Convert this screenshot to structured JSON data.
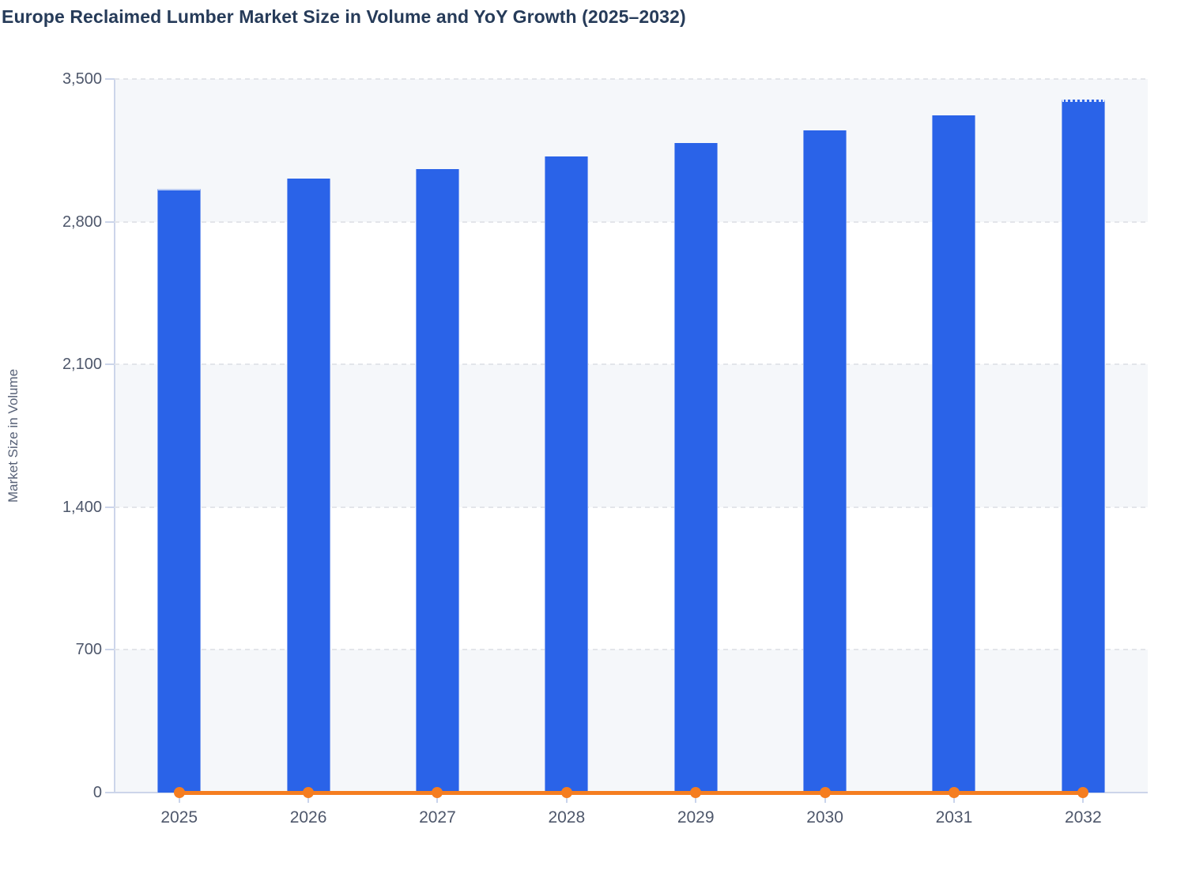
{
  "title": "Europe Reclaimed Lumber Market Size in Volume and YoY Growth (2025–2032)",
  "y_axis": {
    "title": "Market Size in Volume",
    "min": 0,
    "max": 3500,
    "tick_interval": 700,
    "tick_labels_top_to_bottom": [
      "3,500",
      "2,800",
      "2,100",
      "1,400",
      "700",
      "0"
    ]
  },
  "x_axis": {
    "categories": [
      "2025",
      "2026",
      "2027",
      "2028",
      "2029",
      "2030",
      "2031",
      "2032"
    ]
  },
  "chart_data": {
    "type": "bar",
    "title": "Europe Reclaimed Lumber Market Size in Volume and YoY Growth (2025–2032)",
    "categories": [
      "2025",
      "2026",
      "2027",
      "2028",
      "2029",
      "2030",
      "2031",
      "2032"
    ],
    "series": [
      {
        "name": "Market Size in Volume",
        "type": "bar",
        "color": "#2a63e8",
        "values": [
          2960,
          3010,
          3060,
          3120,
          3185,
          3250,
          3320,
          3400
        ],
        "last_bar_style": "dotted white top edge (forecast marker)"
      },
      {
        "name": "YoY Growth",
        "type": "line",
        "color": "#f57d20",
        "values": [
          0,
          0,
          0,
          0,
          0,
          0,
          0,
          0
        ],
        "note": "flat line with circular markers rendered at the zero baseline; percentage values not labeled on chart"
      }
    ],
    "xlabel": "",
    "ylabel": "Market Size in Volume",
    "ylim": [
      0,
      3500
    ],
    "grid": "horizontal dashed gridlines every 700 with alternating plot band fills",
    "legend": "none"
  },
  "colors": {
    "bar": "#2a63e8",
    "line": "#f57d20",
    "title_text": "#263b59",
    "tick_text": "#4e576b",
    "axis_line": "#ccd5ea",
    "gridline": "#e3e5ea",
    "band_fill": "#f5f7fa",
    "background": "#ffffff"
  }
}
